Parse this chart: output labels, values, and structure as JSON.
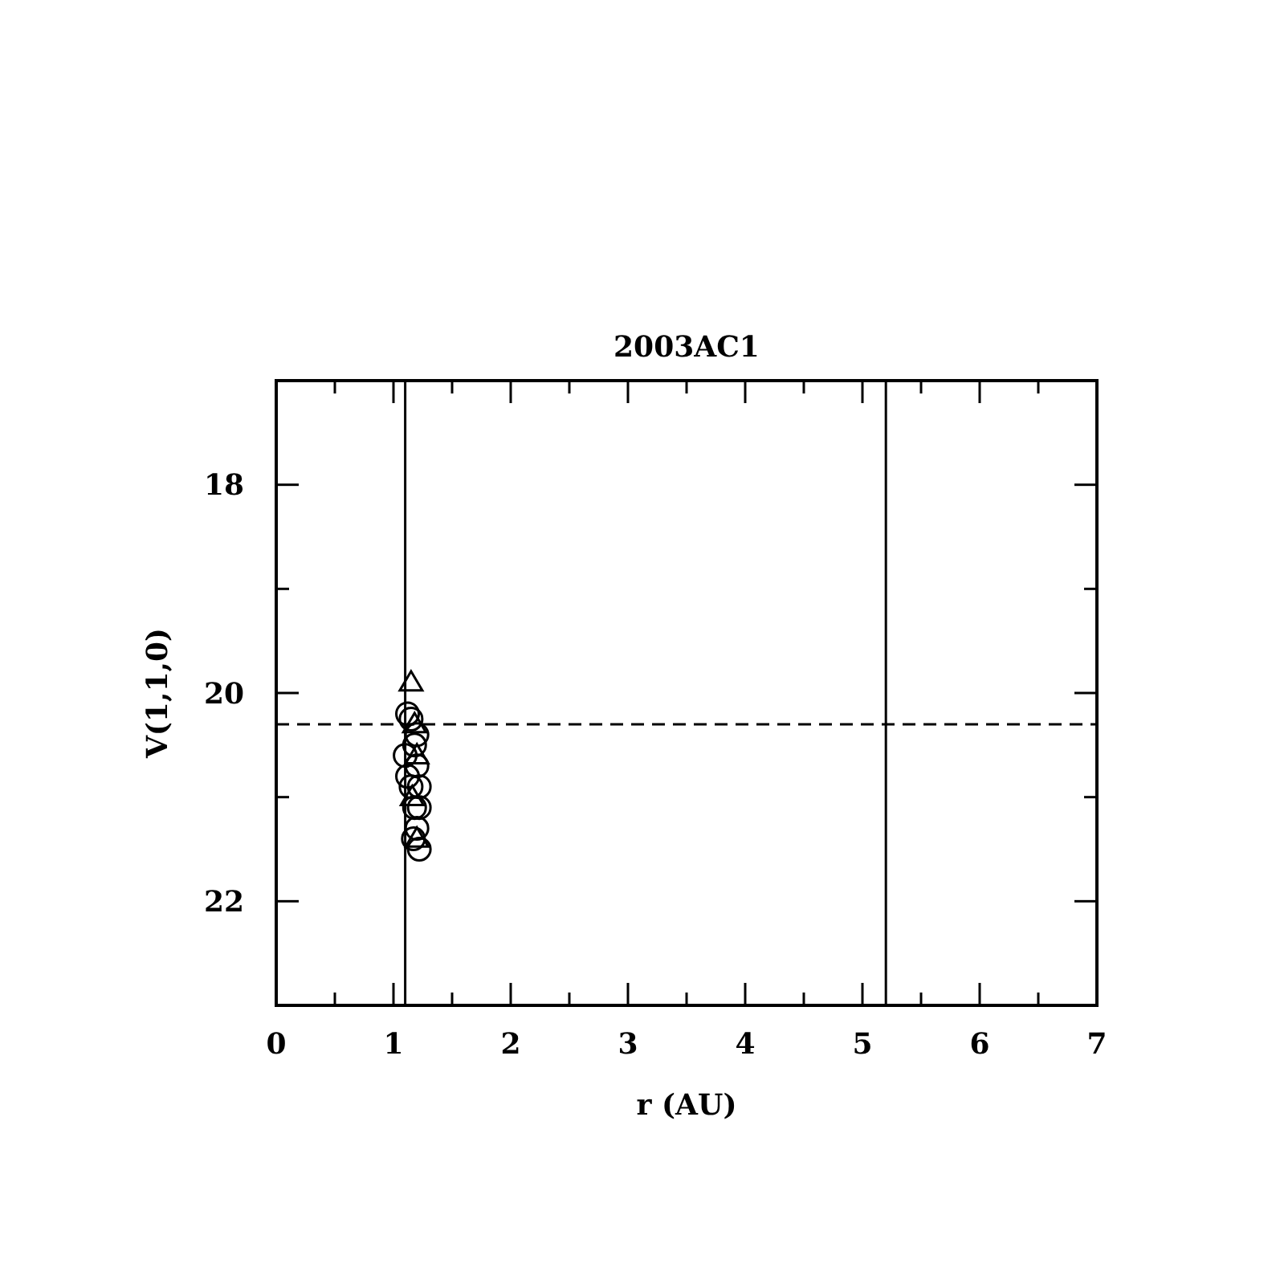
{
  "chart_data": {
    "type": "scatter",
    "title": "2003AC1",
    "xlabel": "r (AU)",
    "ylabel": "V(1,1,0)",
    "xlim": [
      0,
      7
    ],
    "ylim": [
      23,
      17
    ],
    "xticks": [
      0,
      {
        "value": 0.5,
        "label": null
      },
      1,
      {
        "value": 1.5,
        "label": null
      },
      2,
      {
        "value": 2.5,
        "label": null
      },
      3,
      {
        "value": 3.5,
        "label": null
      },
      4,
      {
        "value": 4.5,
        "label": null
      },
      5,
      {
        "value": 5.5,
        "label": null
      },
      6,
      {
        "value": 6.5,
        "label": null
      },
      7
    ],
    "yticks": [
      {
        "value": 17,
        "label": null
      },
      18,
      {
        "value": 19,
        "label": null
      },
      20,
      {
        "value": 21,
        "label": null
      },
      22,
      {
        "value": 23,
        "label": null
      }
    ],
    "series": [
      {
        "color": "#000000",
        "marker": "circle",
        "x": [
          1.12,
          1.15,
          1.1,
          1.12,
          1.18,
          1.2,
          1.22,
          1.18,
          1.22,
          1.2,
          1.22,
          1.17,
          1.2,
          1.15
        ],
        "values": [
          20.2,
          20.25,
          20.6,
          20.8,
          20.5,
          20.7,
          20.9,
          21.1,
          21.1,
          21.3,
          21.5,
          21.4,
          20.4,
          20.9
        ]
      },
      {
        "color": "#000000",
        "marker": "triangle",
        "x": [
          1.15,
          1.18,
          1.2,
          1.16,
          1.2
        ],
        "values": [
          19.9,
          20.3,
          20.6,
          21.0,
          21.4
        ]
      }
    ],
    "ref_lines": [
      {
        "axis": "x",
        "value": 1.1,
        "line_style": "solid"
      },
      {
        "axis": "x",
        "value": 5.2,
        "line_style": "solid"
      },
      {
        "axis": "y",
        "value": 20.3,
        "line_style": "dashed"
      }
    ],
    "grid": false
  }
}
